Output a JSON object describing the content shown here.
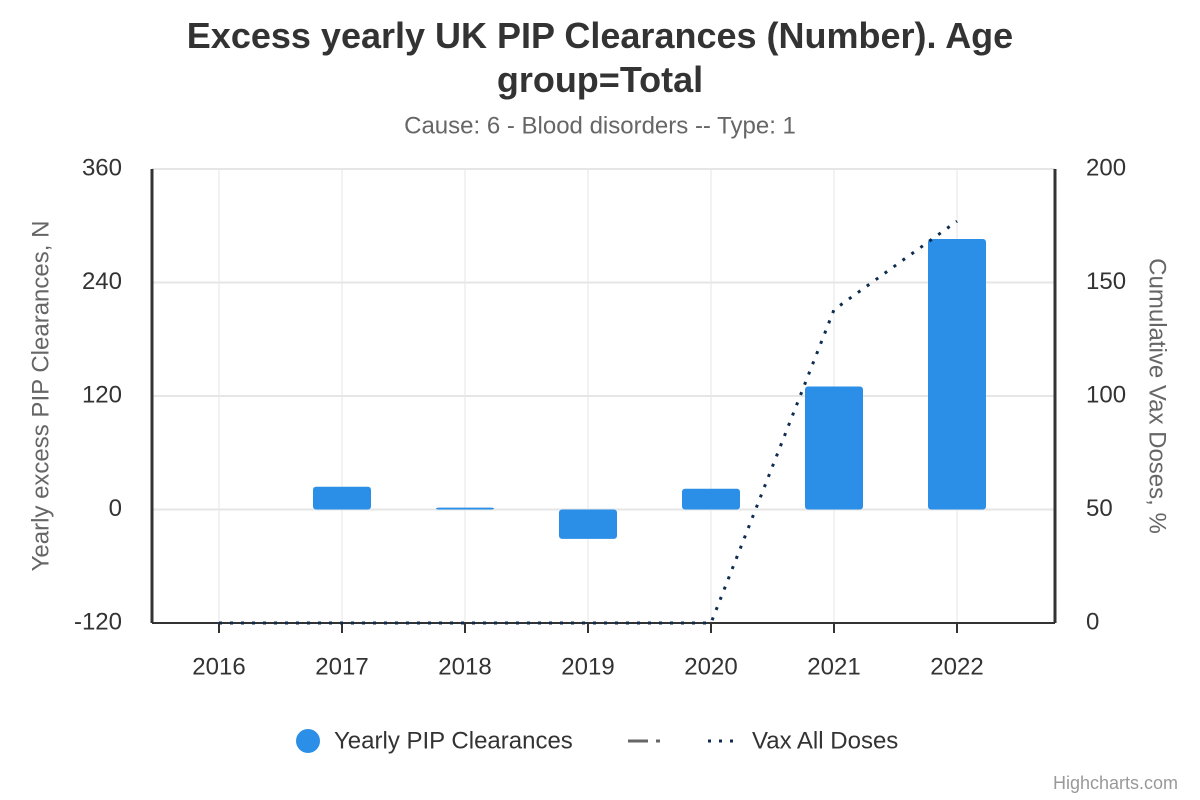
{
  "chart_data": {
    "type": "bar",
    "title": "Excess yearly UK PIP Clearances (Number). Age group=Total",
    "subtitle": "Cause: 6 - Blood disorders -- Type: 1",
    "y_label": "Yearly excess PIP Clearances, N",
    "y2_label": "Cumulative Vax Doses, %",
    "categories": [
      "2016",
      "2017",
      "2018",
      "2019",
      "2020",
      "2021",
      "2022"
    ],
    "series": [
      {
        "name": "Yearly PIP Clearances",
        "type": "bar",
        "color": "#2b8fe8",
        "values": [
          0,
          24,
          2,
          -31,
          22,
          130,
          286
        ]
      },
      {
        "name": "Vax All Doses",
        "type": "line",
        "axis": "y2",
        "color": "#0d2c4f",
        "dash": "dotted",
        "values": [
          0,
          0,
          0,
          0,
          0,
          138,
          177
        ]
      }
    ],
    "ylim": [
      -120,
      360
    ],
    "yticks": [
      -120,
      0,
      120,
      240,
      360
    ],
    "y2lim": [
      0,
      200
    ],
    "y2ticks": [
      0,
      50,
      100,
      150,
      200
    ],
    "grid": true,
    "legend": "bottom",
    "credits": "Highcharts.com"
  }
}
